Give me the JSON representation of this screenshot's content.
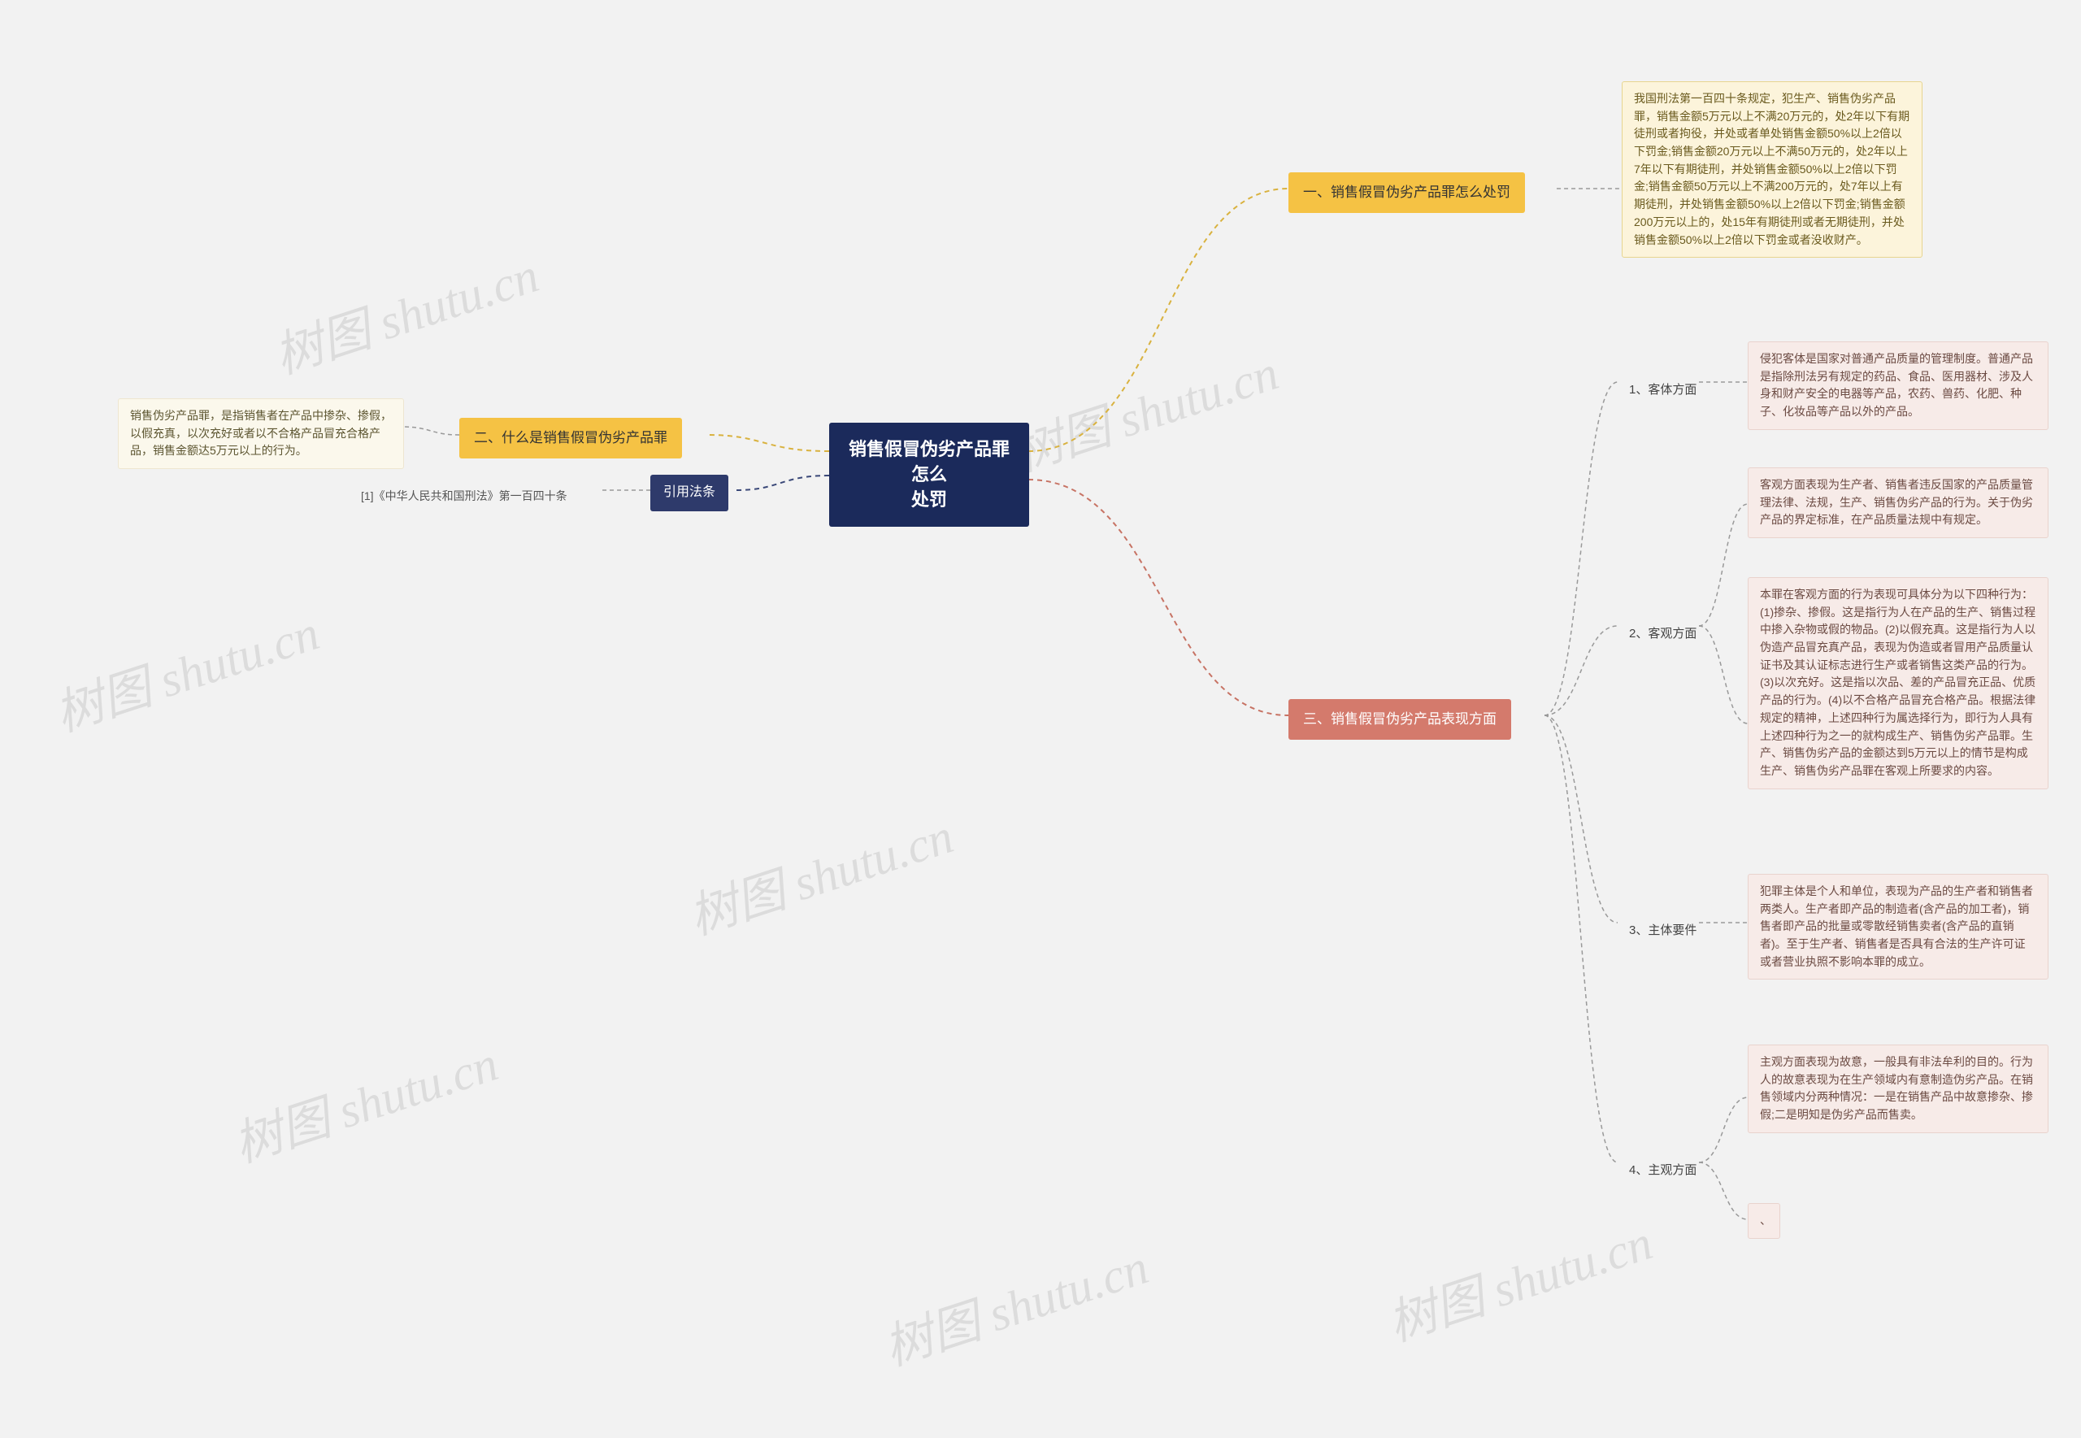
{
  "root": {
    "title": "销售假冒伪劣产品罪怎么\n处罚"
  },
  "watermark": "树图 shutu.cn",
  "left": {
    "section2": {
      "title": "二、什么是销售假冒伪劣产品罪",
      "text": "销售伪劣产品罪，是指销售者在产品中掺杂、掺假，以假充真，以次充好或者以不合格产品冒充合格产品，销售金额达5万元以上的行为。"
    },
    "cite": {
      "title": "引用法条",
      "text": "[1]《中华人民共和国刑法》第一百四十条"
    }
  },
  "right": {
    "section1": {
      "title": "一、销售假冒伪劣产品罪怎么处罚",
      "text": "我国刑法第一百四十条规定，犯生产、销售伪劣产品罪，销售金额5万元以上不满20万元的，处2年以下有期徒刑或者拘役，并处或者单处销售金额50%以上2倍以下罚金;销售金额20万元以上不满50万元的，处2年以上7年以下有期徒刑，并处销售金额50%以上2倍以下罚金;销售金额50万元以上不满200万元的，处7年以上有期徒刑，并处销售金额50%以上2倍以下罚金;销售金额200万元以上的，处15年有期徒刑或者无期徒刑，并处销售金额50%以上2倍以下罚金或者没收财产。"
    },
    "section3": {
      "title": "三、销售假冒伪劣产品表现方面",
      "items": [
        {
          "label": "1、客体方面",
          "text": "侵犯客体是国家对普通产品质量的管理制度。普通产品是指除刑法另有规定的药品、食品、医用器材、涉及人身和财产安全的电器等产品，农药、兽药、化肥、种子、化妆品等产品以外的产品。"
        },
        {
          "label": "2、客观方面",
          "texts": [
            "客观方面表现为生产者、销售者违反国家的产品质量管理法律、法规，生产、销售伪劣产品的行为。关于伪劣产品的界定标准，在产品质量法规中有规定。",
            "本罪在客观方面的行为表现可具体分为以下四种行为：(1)掺杂、掺假。这是指行为人在产品的生产、销售过程中掺入杂物或假的物品。(2)以假充真。这是指行为人以伪造产品冒充真产品，表现为伪造或者冒用产品质量认证书及其认证标志进行生产或者销售这类产品的行为。(3)以次充好。这是指以次品、差的产品冒充正品、优质产品的行为。(4)以不合格产品冒充合格产品。根据法律规定的精神，上述四种行为属选择行为，即行为人具有上述四种行为之一的就构成生产、销售伪劣产品罪。生产、销售伪劣产品的金额达到5万元以上的情节是构成生产、销售伪劣产品罪在客观上所要求的内容。"
          ]
        },
        {
          "label": "3、主体要件",
          "text": "犯罪主体是个人和单位，表现为产品的生产者和销售者两类人。生产者即产品的制造者(含产品的加工者)，销售者即产品的批量或零散经销售卖者(含产品的直销者)。至于生产者、销售者是否具有合法的生产许可证或者营业执照不影响本罪的成立。"
        },
        {
          "label": "4、主观方面",
          "text": "主观方面表现为故意，一般具有非法牟利的目的。行为人的故意表现为在生产领域内有意制造伪劣产品。在销售领域内分两种情况：一是在销售产品中故意掺杂、掺假;二是明知是伪劣产品而售卖。",
          "extra": "、"
        }
      ]
    }
  },
  "colors": {
    "conn_yellow": "#d9b23f",
    "conn_navy": "#3a4878",
    "conn_salmon": "#c77364",
    "conn_gray": "#999999"
  }
}
